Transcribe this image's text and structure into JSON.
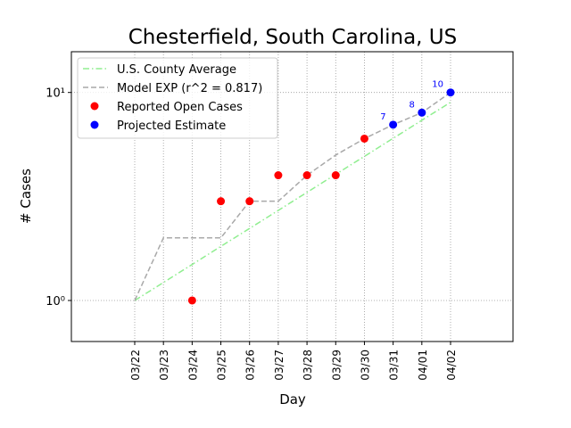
{
  "chart_data": {
    "type": "line",
    "title": "Chesterfield, South Carolina, US",
    "xlabel": "Day",
    "ylabel": "# Cases",
    "categories": [
      "03/22",
      "03/23",
      "03/24",
      "03/25",
      "03/26",
      "03/27",
      "03/28",
      "03/29",
      "03/30",
      "03/31",
      "04/01",
      "04/02"
    ],
    "series": [
      {
        "name": "U.S. County Average",
        "color": "#90ee90",
        "style": "dashdot",
        "values": [
          1,
          1.22,
          1.49,
          1.82,
          2.22,
          2.71,
          3.31,
          4.04,
          4.93,
          6.02,
          7.35,
          8.97
        ]
      },
      {
        "name": "Model EXP (r^2 = 0.817)",
        "color": "#a9a9a9",
        "style": "dashed",
        "values": [
          1,
          2,
          2,
          2,
          3,
          3,
          4,
          5,
          6,
          7,
          8,
          10
        ]
      },
      {
        "name": "Reported Open Cases",
        "color": "#ff0000",
        "style": "points",
        "values": [
          null,
          null,
          1,
          3,
          3,
          4,
          4,
          4,
          6,
          null,
          null,
          null
        ]
      },
      {
        "name": "Projected Estimate",
        "color": "#0000ff",
        "style": "points",
        "labeled": true,
        "values": [
          null,
          null,
          null,
          null,
          null,
          null,
          null,
          null,
          null,
          7,
          8,
          10
        ]
      }
    ],
    "log_y": true,
    "ylim": [
      0.635,
      15.7
    ],
    "yticks": [
      {
        "value": 1,
        "label": "10⁰"
      },
      {
        "value": 10,
        "label": "10¹"
      }
    ],
    "grid": true,
    "legend": "upper left"
  }
}
